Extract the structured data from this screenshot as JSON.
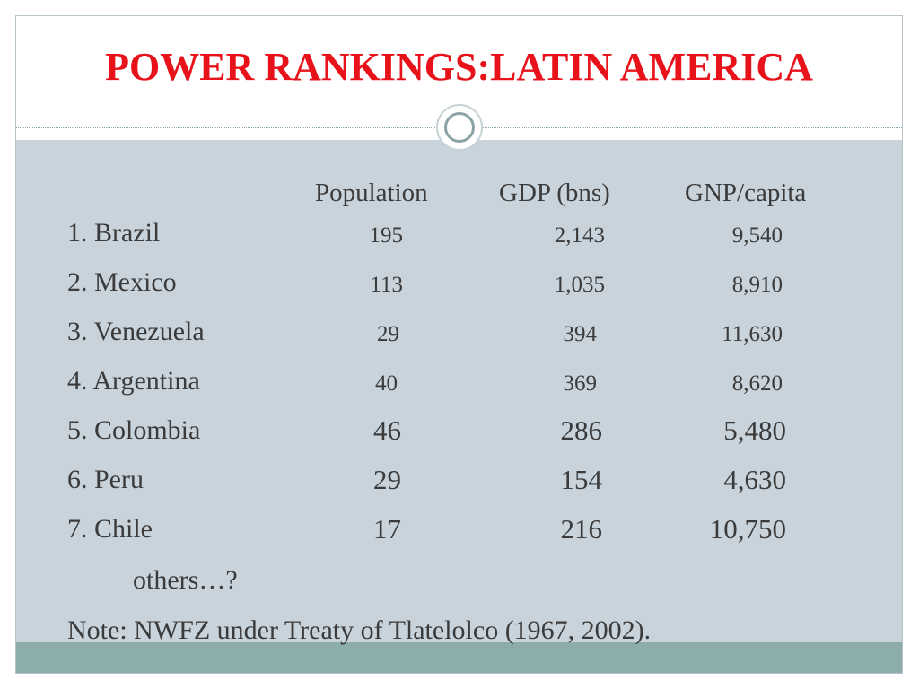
{
  "title": "POWER RANKINGS:LATIN AMERICA",
  "headers": {
    "population": "Population",
    "gdp": "GDP (bns)",
    "gnp": "GNP/capita"
  },
  "rows": [
    {
      "country": "1. Brazil",
      "population": "195",
      "gdp": "2,143",
      "gnp": "9,540"
    },
    {
      "country": "2. Mexico",
      "population": "113",
      "gdp": "1,035",
      "gnp": "8,910"
    },
    {
      "country": "3. Venezuela",
      "population": "29",
      "gdp": "394",
      "gnp": "11,630"
    },
    {
      "country": "4. Argentina",
      "population": "40",
      "gdp": "369",
      "gnp": "8,620"
    },
    {
      "country": "5. Colombia",
      "population": "46",
      "gdp": "286",
      "gnp": "5,480"
    },
    {
      "country": "6. Peru",
      "population": "29",
      "gdp": "154",
      "gnp": "4,630"
    },
    {
      "country": "7. Chile",
      "population": "17",
      "gdp": "216",
      "gnp": "10,750"
    }
  ],
  "others": "others…?",
  "note": "Note:  NWFZ under Treaty of Tlatelolco (1967, 2002).",
  "colors": {
    "title": "#e8121b",
    "panel": "#c8d3db",
    "band": "#8dadad",
    "text": "#3b3b3b"
  }
}
